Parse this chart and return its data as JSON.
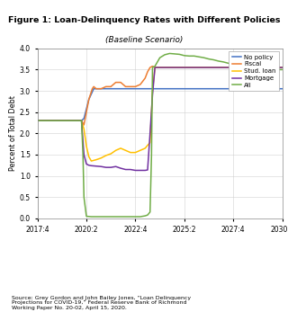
{
  "title": "Figure 1: Loan-Delinquency Rates with Different Policies",
  "subtitle": "(Baseline Scenario)",
  "ylabel": "Percent of Total Debt",
  "source_text": "Source: Grey Gordon and John Bailey Jones, “Loan Delinquency\nProjections for COVID-19,” Federal Reserve Bank of Richmond\nWorking Paper No. 20-02, April 15, 2020.",
  "xlim": [
    0,
    50
  ],
  "ylim": [
    0,
    4.0
  ],
  "yticks": [
    0,
    0.5,
    1.0,
    1.5,
    2.0,
    2.5,
    3.0,
    3.5,
    4.0
  ],
  "xtick_positions": [
    0,
    10,
    20,
    30,
    40,
    50
  ],
  "xtick_labels": [
    "2017:4",
    "2020:2",
    "2022:4",
    "2025:2",
    "2027:4",
    "2030:2"
  ],
  "colors": {
    "No policy": "#4472c4",
    "Fiscal": "#ed7d31",
    "Stud. loan": "#ffc000",
    "Mortgage": "#7030a0",
    "All": "#70ad47"
  },
  "header_bar_color": "#5bc8f5",
  "header_bg": "#f5f5f5",
  "no_policy": {
    "x": [
      0,
      9,
      9.5,
      10.5,
      11.5,
      12,
      13,
      50
    ],
    "y": [
      2.3,
      2.3,
      2.35,
      2.8,
      3.05,
      3.05,
      3.05,
      3.05
    ]
  },
  "fiscal": {
    "x": [
      0,
      9,
      9.5,
      10.5,
      11.2,
      11.5,
      12,
      13,
      14,
      15,
      16,
      17,
      18,
      19,
      20,
      21,
      22,
      22.5,
      23,
      23.5,
      24,
      24.5,
      50
    ],
    "y": [
      2.3,
      2.3,
      2.2,
      2.8,
      3.05,
      3.1,
      3.05,
      3.05,
      3.1,
      3.1,
      3.2,
      3.2,
      3.1,
      3.1,
      3.1,
      3.15,
      3.3,
      3.45,
      3.55,
      3.58,
      3.55,
      3.55,
      3.55
    ]
  },
  "stud_loan": {
    "x": [
      0,
      9,
      9.5,
      10,
      10.5,
      11,
      12,
      13,
      14,
      15,
      16,
      17,
      18,
      19,
      20,
      21,
      22,
      22.5,
      23,
      23.5,
      24,
      24.5,
      50
    ],
    "y": [
      2.3,
      2.3,
      2.1,
      1.7,
      1.45,
      1.35,
      1.38,
      1.42,
      1.48,
      1.52,
      1.6,
      1.65,
      1.6,
      1.55,
      1.55,
      1.6,
      1.65,
      1.72,
      1.78,
      3.0,
      3.55,
      3.55,
      3.55
    ]
  },
  "mortgage": {
    "x": [
      0,
      9,
      9.5,
      10,
      10.5,
      11,
      12,
      13,
      14,
      15,
      16,
      17,
      18,
      19,
      20,
      21,
      22,
      22.5,
      23,
      23.5,
      24,
      24.5,
      50
    ],
    "y": [
      2.3,
      2.3,
      1.5,
      1.28,
      1.25,
      1.24,
      1.23,
      1.22,
      1.2,
      1.2,
      1.22,
      1.18,
      1.15,
      1.15,
      1.13,
      1.13,
      1.13,
      1.14,
      2.0,
      2.9,
      3.55,
      3.55,
      3.55
    ]
  },
  "all": {
    "x": [
      0,
      9,
      9.3,
      9.5,
      10,
      11,
      12,
      13,
      14,
      15,
      16,
      17,
      18,
      19,
      20,
      21,
      22,
      22.5,
      23,
      23.3,
      23.5,
      24,
      25,
      26,
      27,
      28,
      29,
      30,
      31,
      32,
      33,
      34,
      35,
      36,
      37,
      38,
      39,
      40,
      41,
      42,
      43,
      44,
      45,
      50
    ],
    "y": [
      2.3,
      2.3,
      1.5,
      0.5,
      0.05,
      0.04,
      0.04,
      0.04,
      0.04,
      0.04,
      0.04,
      0.04,
      0.04,
      0.04,
      0.04,
      0.04,
      0.06,
      0.08,
      0.15,
      1.5,
      3.55,
      3.58,
      3.78,
      3.85,
      3.88,
      3.87,
      3.86,
      3.83,
      3.82,
      3.82,
      3.8,
      3.78,
      3.75,
      3.73,
      3.7,
      3.68,
      3.65,
      3.63,
      3.62,
      3.6,
      3.57,
      3.53,
      3.5,
      3.5
    ]
  },
  "fig_bg": "#f0f0f0"
}
